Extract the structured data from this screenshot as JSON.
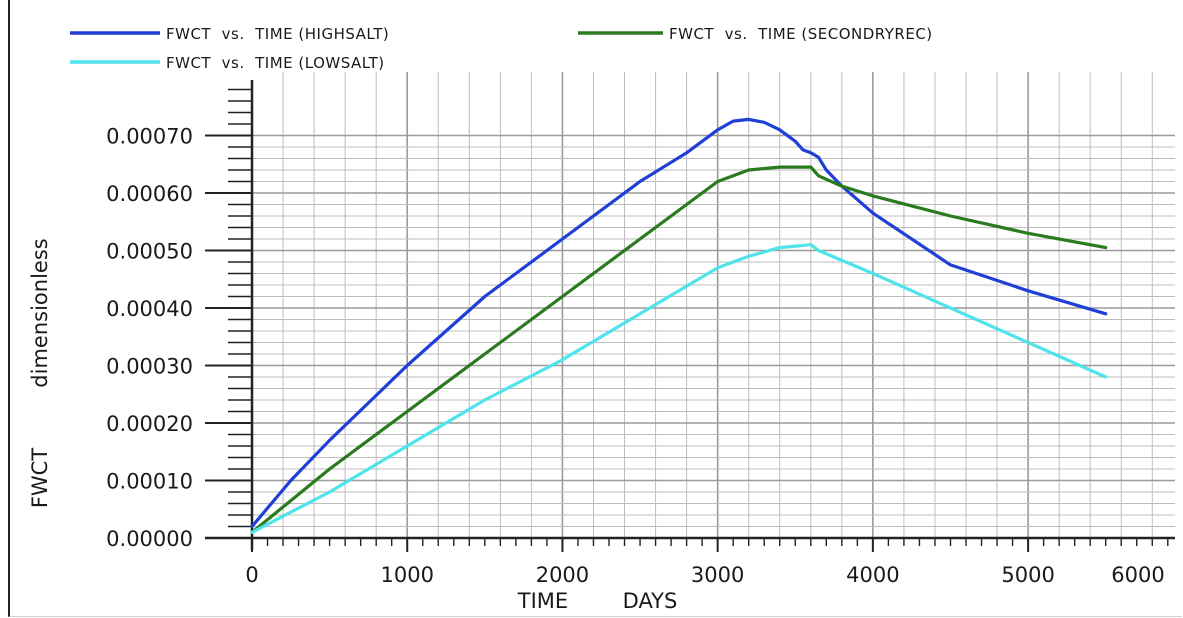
{
  "chart_data": {
    "type": "line",
    "xlabel": "TIME DAYS",
    "xlabel_words": [
      "TIME",
      "DAYS"
    ],
    "ylabel": "FWCT dimensionless",
    "ylabel_words": [
      "FWCT",
      "dimensionless"
    ],
    "xlim": [
      0,
      6000
    ],
    "ylim": [
      0,
      0.0008
    ],
    "x_ticks": [
      0,
      1000,
      2000,
      3000,
      4000,
      5000,
      6000
    ],
    "x_tick_labels": [
      "0",
      "1000",
      "2000",
      "3000",
      "4000",
      "5000",
      "6000"
    ],
    "y_ticks": [
      0,
      0.0001,
      0.0002,
      0.0003,
      0.0004,
      0.0005,
      0.0006,
      0.0007
    ],
    "y_tick_labels": [
      "0.00000",
      "0.00010",
      "0.00020",
      "0.00030",
      "0.00040",
      "0.00050",
      "0.00060",
      "0.00070"
    ],
    "grid": true,
    "legend_position": "top",
    "series": [
      {
        "name": "FWCT  vs.  TIME (HIGHSALT)",
        "color": "#1f3fd6",
        "x": [
          0,
          250,
          500,
          1000,
          1500,
          2000,
          2500,
          2800,
          3000,
          3100,
          3200,
          3300,
          3400,
          3500,
          3550,
          3600,
          3650,
          3700,
          3800,
          4000,
          4500,
          5000,
          5500
        ],
        "y": [
          2e-05,
          0.0001,
          0.00017,
          0.0003,
          0.00042,
          0.00052,
          0.00062,
          0.00067,
          0.00071,
          0.000725,
          0.000728,
          0.000723,
          0.00071,
          0.00069,
          0.000675,
          0.00067,
          0.000662,
          0.00064,
          0.000612,
          0.000565,
          0.000475,
          0.00043,
          0.00039
        ]
      },
      {
        "name": "FWCT  vs.  TIME (SECONDRYREC)",
        "color": "#2a7a1e",
        "x": [
          0,
          500,
          1000,
          1500,
          2000,
          2500,
          3000,
          3200,
          3400,
          3600,
          3650,
          3800,
          4000,
          4500,
          5000,
          5500
        ],
        "y": [
          1e-05,
          0.00012,
          0.00022,
          0.00032,
          0.00042,
          0.00052,
          0.00062,
          0.00064,
          0.000645,
          0.000645,
          0.00063,
          0.000612,
          0.000595,
          0.00056,
          0.00053,
          0.000505
        ]
      },
      {
        "name": "FWCT  vs.  TIME (LOWSALT)",
        "color": "#4fe3ec",
        "x": [
          0,
          500,
          1000,
          1500,
          2000,
          2500,
          3000,
          3200,
          3400,
          3600,
          3650,
          4000,
          4500,
          5000,
          5500
        ],
        "y": [
          1e-05,
          8e-05,
          0.00016,
          0.00024,
          0.00031,
          0.00039,
          0.00047,
          0.00049,
          0.000505,
          0.00051,
          0.0005,
          0.00046,
          0.0004,
          0.00034,
          0.00028
        ]
      }
    ]
  }
}
